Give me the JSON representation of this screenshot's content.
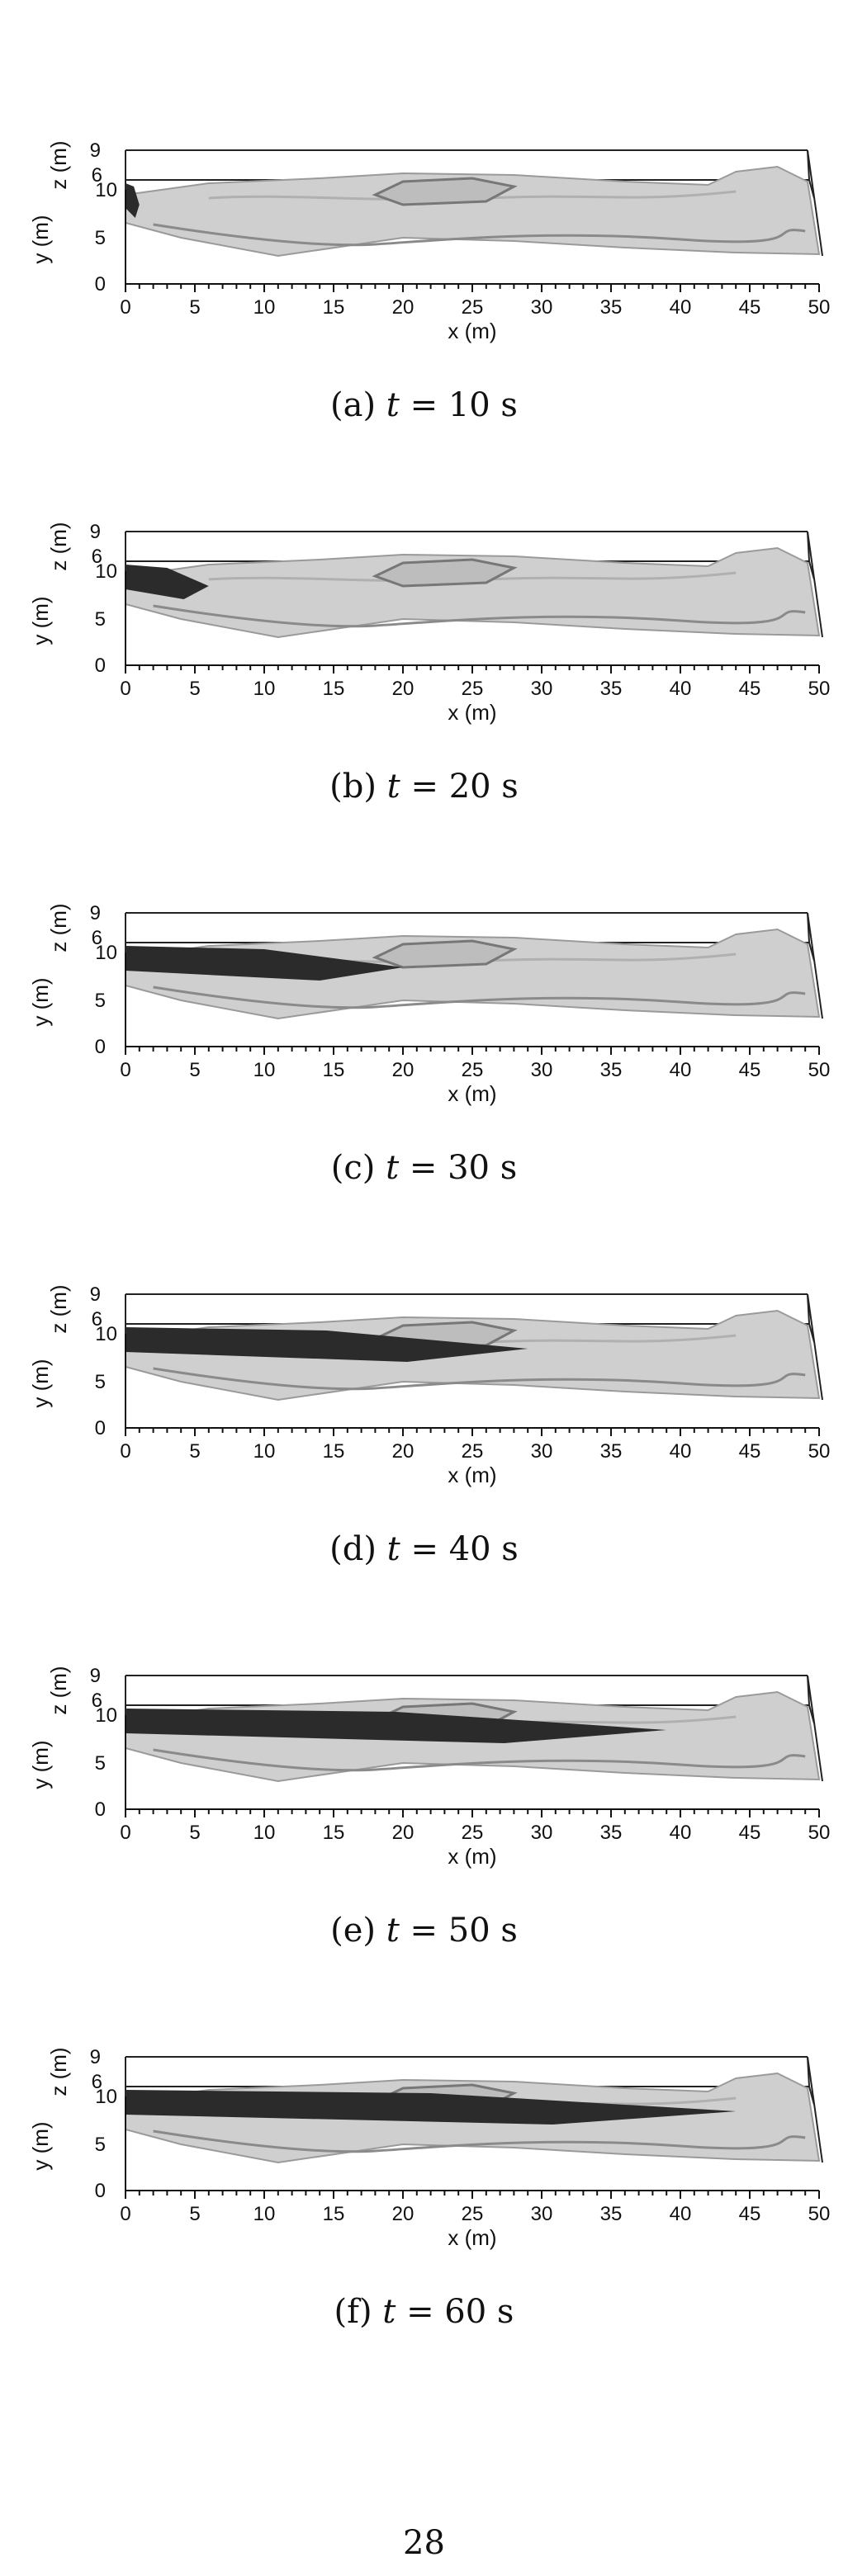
{
  "axes": {
    "x_label": "x (m)",
    "y_label": "y (m)",
    "z_label": "z (m)",
    "x_ticks": [
      "0",
      "5",
      "10",
      "15",
      "20",
      "25",
      "30",
      "35",
      "40",
      "45",
      "50"
    ],
    "y_ticks": [
      "0",
      "5",
      "10"
    ],
    "z_ticks": [
      "6",
      "9"
    ]
  },
  "panels": [
    {
      "label": "(a)",
      "t": "t",
      "eq": " = 10 s",
      "flood_extent_x": 1
    },
    {
      "label": "(b)",
      "t": "t",
      "eq": " = 20 s",
      "flood_extent_x": 6
    },
    {
      "label": "(c)",
      "t": "t",
      "eq": " = 30 s",
      "flood_extent_x": 20
    },
    {
      "label": "(d)",
      "t": "t",
      "eq": " = 40 s",
      "flood_extent_x": 29
    },
    {
      "label": "(e)",
      "t": "t",
      "eq": " = 50 s",
      "flood_extent_x": 39
    },
    {
      "label": "(f)",
      "t": "t",
      "eq": " = 60 s",
      "flood_extent_x": 44
    }
  ],
  "page_number": "28",
  "colors": {
    "terrain": "#cfcfcf",
    "terrain_dark": "#9a9a9a",
    "flood": "#2b2b2b"
  }
}
